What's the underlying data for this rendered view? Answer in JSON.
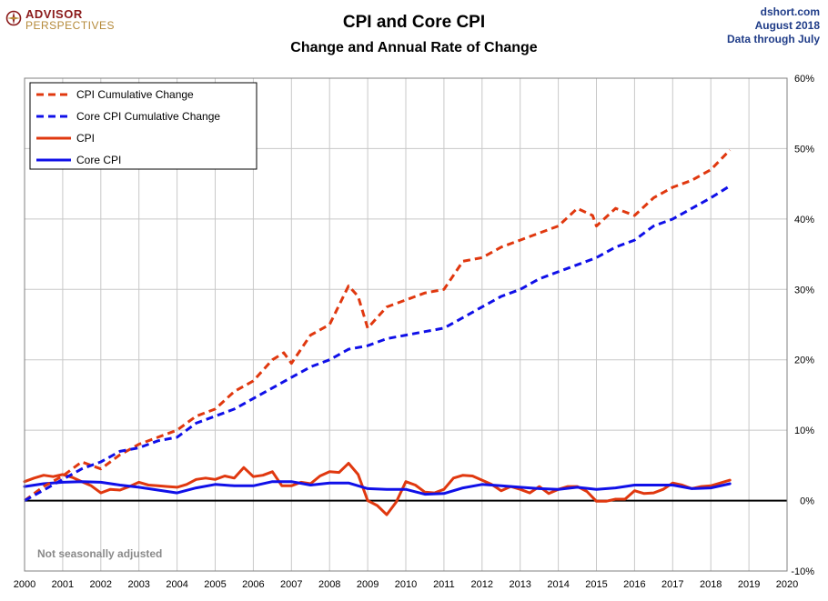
{
  "header": {
    "logo_line1": "ADVISOR",
    "logo_line2": "PERSPECTIVES",
    "title": "CPI and Core CPI",
    "subtitle": "Change and Annual Rate of Change",
    "credit_site": "dshort.com",
    "credit_date": "August 2018",
    "credit_through": "Data through July"
  },
  "note": "Not seasonally adjusted",
  "colors": {
    "cpi": "#e0380f",
    "core": "#1010e8"
  },
  "chart_data": {
    "type": "line",
    "title": "CPI and Core CPI",
    "subtitle": "Change and Annual Rate of Change",
    "x_ticks": [
      "2000",
      "2001",
      "2002",
      "2003",
      "2004",
      "2005",
      "2006",
      "2007",
      "2008",
      "2009",
      "2010",
      "2011",
      "2012",
      "2013",
      "2014",
      "2015",
      "2016",
      "2017",
      "2018",
      "2019",
      "2020"
    ],
    "y_ticks": [
      "-10%",
      "0%",
      "10%",
      "20%",
      "30%",
      "40%",
      "50%",
      "60%"
    ],
    "xlim": [
      2000,
      2020
    ],
    "ylim": [
      -10,
      60
    ],
    "grid": true,
    "legend_position": "top-left",
    "series": [
      {
        "name": "CPI Cumulative Change",
        "style": "dashed",
        "color": "#e0380f",
        "points": [
          [
            2000.0,
            0.0
          ],
          [
            2000.5,
            2.0
          ],
          [
            2001.0,
            3.5
          ],
          [
            2001.5,
            5.5
          ],
          [
            2002.0,
            4.5
          ],
          [
            2002.5,
            6.5
          ],
          [
            2003.0,
            8.0
          ],
          [
            2003.5,
            9.0
          ],
          [
            2004.0,
            10.0
          ],
          [
            2004.5,
            12.0
          ],
          [
            2005.0,
            13.0
          ],
          [
            2005.5,
            15.5
          ],
          [
            2006.0,
            17.0
          ],
          [
            2006.5,
            20.0
          ],
          [
            2006.8,
            21.0
          ],
          [
            2007.0,
            19.5
          ],
          [
            2007.5,
            23.5
          ],
          [
            2008.0,
            25.0
          ],
          [
            2008.5,
            30.5
          ],
          [
            2008.75,
            29.0
          ],
          [
            2009.0,
            24.5
          ],
          [
            2009.5,
            27.5
          ],
          [
            2010.0,
            28.5
          ],
          [
            2010.5,
            29.5
          ],
          [
            2011.0,
            30.0
          ],
          [
            2011.5,
            34.0
          ],
          [
            2012.0,
            34.5
          ],
          [
            2012.5,
            36.0
          ],
          [
            2013.0,
            37.0
          ],
          [
            2013.5,
            38.0
          ],
          [
            2014.0,
            39.0
          ],
          [
            2014.5,
            41.5
          ],
          [
            2014.9,
            40.5
          ],
          [
            2015.0,
            39.0
          ],
          [
            2015.5,
            41.5
          ],
          [
            2016.0,
            40.5
          ],
          [
            2016.5,
            43.0
          ],
          [
            2017.0,
            44.5
          ],
          [
            2017.5,
            45.5
          ],
          [
            2018.0,
            47.0
          ],
          [
            2018.5,
            49.8
          ]
        ]
      },
      {
        "name": "Core CPI Cumulative Change",
        "style": "dashed",
        "color": "#1010e8",
        "points": [
          [
            2000.0,
            0.0
          ],
          [
            2000.5,
            1.5
          ],
          [
            2001.0,
            3.0
          ],
          [
            2001.5,
            4.5
          ],
          [
            2002.0,
            5.5
          ],
          [
            2002.5,
            7.0
          ],
          [
            2003.0,
            7.5
          ],
          [
            2003.5,
            8.5
          ],
          [
            2004.0,
            9.0
          ],
          [
            2004.5,
            11.0
          ],
          [
            2005.0,
            12.0
          ],
          [
            2005.5,
            13.0
          ],
          [
            2006.0,
            14.5
          ],
          [
            2006.5,
            16.0
          ],
          [
            2007.0,
            17.5
          ],
          [
            2007.5,
            19.0
          ],
          [
            2008.0,
            20.0
          ],
          [
            2008.5,
            21.5
          ],
          [
            2009.0,
            22.0
          ],
          [
            2009.5,
            23.0
          ],
          [
            2010.0,
            23.5
          ],
          [
            2010.5,
            24.0
          ],
          [
            2011.0,
            24.5
          ],
          [
            2011.5,
            26.0
          ],
          [
            2012.0,
            27.5
          ],
          [
            2012.5,
            29.0
          ],
          [
            2013.0,
            30.0
          ],
          [
            2013.5,
            31.5
          ],
          [
            2014.0,
            32.5
          ],
          [
            2014.5,
            33.5
          ],
          [
            2015.0,
            34.5
          ],
          [
            2015.5,
            36.0
          ],
          [
            2016.0,
            37.0
          ],
          [
            2016.5,
            39.0
          ],
          [
            2017.0,
            40.0
          ],
          [
            2017.5,
            41.5
          ],
          [
            2018.0,
            43.0
          ],
          [
            2018.5,
            44.7
          ]
        ]
      },
      {
        "name": "CPI",
        "style": "solid",
        "color": "#e0380f",
        "points": [
          [
            2000.0,
            2.7
          ],
          [
            2000.25,
            3.2
          ],
          [
            2000.5,
            3.6
          ],
          [
            2000.75,
            3.4
          ],
          [
            2001.0,
            3.7
          ],
          [
            2001.25,
            3.3
          ],
          [
            2001.5,
            2.7
          ],
          [
            2001.75,
            2.1
          ],
          [
            2002.0,
            1.1
          ],
          [
            2002.25,
            1.6
          ],
          [
            2002.5,
            1.5
          ],
          [
            2002.75,
            2.0
          ],
          [
            2003.0,
            2.6
          ],
          [
            2003.25,
            2.2
          ],
          [
            2003.5,
            2.1
          ],
          [
            2003.75,
            2.0
          ],
          [
            2004.0,
            1.9
          ],
          [
            2004.25,
            2.3
          ],
          [
            2004.5,
            3.0
          ],
          [
            2004.75,
            3.2
          ],
          [
            2005.0,
            3.0
          ],
          [
            2005.25,
            3.5
          ],
          [
            2005.5,
            3.2
          ],
          [
            2005.75,
            4.7
          ],
          [
            2006.0,
            3.4
          ],
          [
            2006.25,
            3.6
          ],
          [
            2006.5,
            4.1
          ],
          [
            2006.75,
            2.1
          ],
          [
            2007.0,
            2.1
          ],
          [
            2007.25,
            2.6
          ],
          [
            2007.5,
            2.4
          ],
          [
            2007.75,
            3.5
          ],
          [
            2008.0,
            4.1
          ],
          [
            2008.25,
            4.0
          ],
          [
            2008.5,
            5.3
          ],
          [
            2008.75,
            3.7
          ],
          [
            2009.0,
            0.0
          ],
          [
            2009.25,
            -0.7
          ],
          [
            2009.5,
            -2.0
          ],
          [
            2009.75,
            -0.2
          ],
          [
            2010.0,
            2.7
          ],
          [
            2010.25,
            2.2
          ],
          [
            2010.5,
            1.2
          ],
          [
            2010.75,
            1.1
          ],
          [
            2011.0,
            1.6
          ],
          [
            2011.25,
            3.2
          ],
          [
            2011.5,
            3.6
          ],
          [
            2011.75,
            3.5
          ],
          [
            2012.0,
            2.9
          ],
          [
            2012.25,
            2.3
          ],
          [
            2012.5,
            1.4
          ],
          [
            2012.75,
            2.0
          ],
          [
            2013.0,
            1.6
          ],
          [
            2013.25,
            1.1
          ],
          [
            2013.5,
            2.0
          ],
          [
            2013.75,
            1.0
          ],
          [
            2014.0,
            1.6
          ],
          [
            2014.25,
            2.0
          ],
          [
            2014.5,
            2.0
          ],
          [
            2014.75,
            1.3
          ],
          [
            2015.0,
            -0.1
          ],
          [
            2015.25,
            -0.1
          ],
          [
            2015.5,
            0.2
          ],
          [
            2015.75,
            0.2
          ],
          [
            2016.0,
            1.4
          ],
          [
            2016.25,
            1.0
          ],
          [
            2016.5,
            1.1
          ],
          [
            2016.75,
            1.6
          ],
          [
            2017.0,
            2.5
          ],
          [
            2017.25,
            2.2
          ],
          [
            2017.5,
            1.7
          ],
          [
            2017.75,
            2.0
          ],
          [
            2018.0,
            2.1
          ],
          [
            2018.25,
            2.5
          ],
          [
            2018.5,
            2.9
          ]
        ]
      },
      {
        "name": "Core CPI",
        "style": "solid",
        "color": "#1010e8",
        "points": [
          [
            2000.0,
            2.0
          ],
          [
            2000.5,
            2.4
          ],
          [
            2001.0,
            2.6
          ],
          [
            2001.5,
            2.7
          ],
          [
            2002.0,
            2.6
          ],
          [
            2002.5,
            2.2
          ],
          [
            2003.0,
            1.9
          ],
          [
            2003.5,
            1.5
          ],
          [
            2004.0,
            1.1
          ],
          [
            2004.5,
            1.8
          ],
          [
            2005.0,
            2.3
          ],
          [
            2005.5,
            2.1
          ],
          [
            2006.0,
            2.1
          ],
          [
            2006.5,
            2.7
          ],
          [
            2007.0,
            2.7
          ],
          [
            2007.5,
            2.2
          ],
          [
            2008.0,
            2.5
          ],
          [
            2008.5,
            2.5
          ],
          [
            2009.0,
            1.7
          ],
          [
            2009.5,
            1.6
          ],
          [
            2010.0,
            1.6
          ],
          [
            2010.5,
            0.9
          ],
          [
            2011.0,
            1.0
          ],
          [
            2011.5,
            1.8
          ],
          [
            2012.0,
            2.3
          ],
          [
            2012.5,
            2.1
          ],
          [
            2013.0,
            1.9
          ],
          [
            2013.5,
            1.7
          ],
          [
            2014.0,
            1.6
          ],
          [
            2014.5,
            1.9
          ],
          [
            2015.0,
            1.6
          ],
          [
            2015.5,
            1.8
          ],
          [
            2016.0,
            2.2
          ],
          [
            2016.5,
            2.2
          ],
          [
            2017.0,
            2.2
          ],
          [
            2017.5,
            1.7
          ],
          [
            2018.0,
            1.8
          ],
          [
            2018.5,
            2.4
          ]
        ]
      }
    ]
  }
}
